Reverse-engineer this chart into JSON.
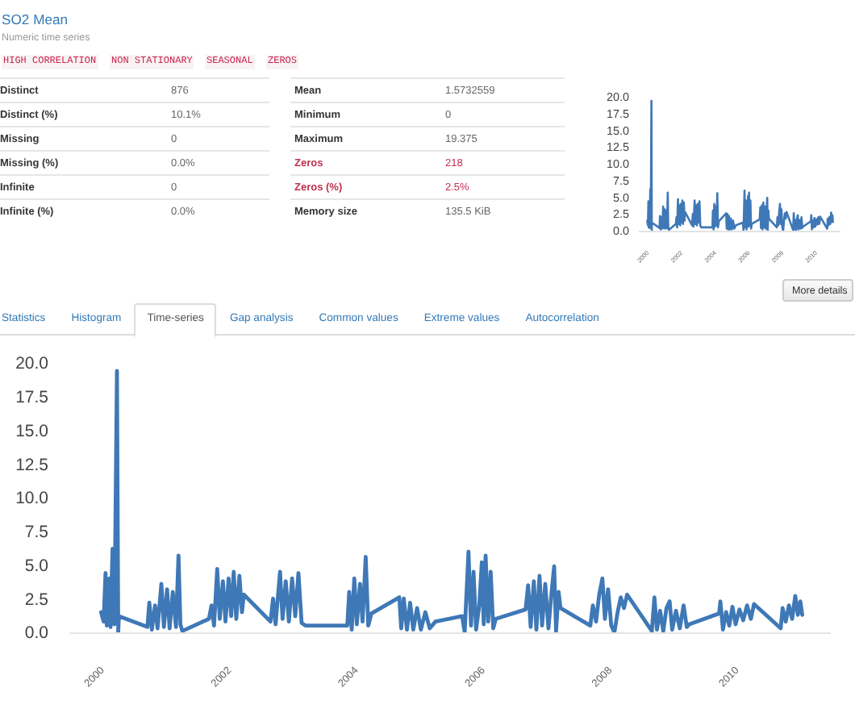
{
  "chart_data": [
    {
      "type": "other",
      "title": "SO2 Mean",
      "subtitle": "Numeric time series",
      "annotations": [
        "HIGH CORRELATION",
        "NON STATIONARY",
        "SEASONAL",
        "ZEROS",
        "Distinct",
        "876",
        "Distinct (%)",
        "10.1%",
        "Missing",
        "0",
        "Missing (%)",
        "0.0%",
        "Infinite",
        "0",
        "Infinite (%)",
        "0.0%",
        "Mean",
        "1.5732559",
        "Minimum",
        "0",
        "Maximum",
        "19.375",
        "Zeros",
        "218",
        "Zeros (%)",
        "2.5%",
        "Memory size",
        "135.5 KiB"
      ]
    },
    {
      "type": "line",
      "color": "#3f78b6",
      "xlim": [
        1999.5,
        2011.5
      ],
      "ylim": [
        0,
        20
      ],
      "xticks": [
        2000,
        2002,
        2004,
        2006,
        2008,
        2010
      ],
      "yticks": [
        {
          "value": 0,
          "label": "0.0"
        },
        2.5,
        {
          "value": 5,
          "label": "5.0"
        },
        7.5,
        {
          "value": 10,
          "label": "10.0"
        },
        12.5,
        {
          "value": 15,
          "label": "15.0"
        },
        17.5,
        {
          "value": 20,
          "label": "20.0"
        }
      ],
      "x": [
        2000.0,
        2000.04,
        2000.07,
        2000.09,
        2000.13,
        2000.15,
        2000.18,
        2000.21,
        2000.25,
        2000.27,
        2000.28,
        2000.73,
        2000.76,
        2000.8,
        2000.85,
        2000.89,
        2000.95,
        2000.99,
        2001.04,
        2001.08,
        2001.13,
        2001.18,
        2001.22,
        2001.25,
        2001.28,
        2001.7,
        2001.74,
        2001.78,
        2001.83,
        2001.87,
        2001.92,
        2001.96,
        2002.01,
        2002.05,
        2002.09,
        2002.13,
        2002.18,
        2002.22,
        2002.25,
        2002.67,
        2002.71,
        2002.75,
        2002.82,
        2002.86,
        2002.91,
        2002.96,
        2003.01,
        2003.06,
        2003.11,
        2003.16,
        2003.22,
        2003.88,
        2003.91,
        2003.95,
        2003.99,
        2004.03,
        2004.08,
        2004.12,
        2004.17,
        2004.21,
        2004.26,
        2004.7,
        2004.73,
        2004.77,
        2004.82,
        2004.87,
        2004.92,
        2004.98,
        2005.04,
        2005.11,
        2005.18,
        2005.27,
        2005.69,
        2005.73,
        2005.79,
        2005.83,
        2005.87,
        2005.91,
        2005.96,
        2006.0,
        2006.03,
        2006.06,
        2006.1,
        2006.14,
        2006.18,
        2006.22,
        2006.69,
        2006.73,
        2006.77,
        2006.82,
        2006.86,
        2006.91,
        2006.95,
        2007.0,
        2007.05,
        2007.1,
        2007.14,
        2007.17,
        2007.21,
        2007.24,
        2007.71,
        2007.75,
        2007.8,
        2007.85,
        2007.9,
        2007.94,
        2007.99,
        2008.04,
        2008.09,
        2008.14,
        2008.19,
        2008.24,
        2008.29,
        2008.68,
        2008.72,
        2008.76,
        2008.81,
        2008.86,
        2008.91,
        2008.96,
        2009.0,
        2009.06,
        2009.12,
        2009.18,
        2009.23,
        2009.27,
        2009.74,
        2009.76,
        2009.8,
        2009.85,
        2009.9,
        2009.95,
        2010.0,
        2010.06,
        2010.12,
        2010.18,
        2010.24,
        2010.29,
        2010.71,
        2010.74,
        2010.79,
        2010.84,
        2010.89,
        2010.94,
        2010.98,
        2011.02,
        2011.05
      ],
      "values": [
        1.5,
        0.8,
        4.4,
        0.5,
        4.0,
        0.4,
        6.2,
        0.6,
        19.4,
        0.0,
        1.2,
        0.4,
        2.2,
        0.2,
        2.0,
        0.3,
        3.6,
        0.4,
        3.2,
        0.3,
        3.0,
        0.4,
        5.7,
        0.6,
        0.1,
        1.0,
        2.0,
        0.5,
        4.7,
        1.0,
        3.8,
        0.8,
        4.0,
        1.2,
        4.5,
        1.0,
        4.2,
        1.5,
        2.8,
        0.8,
        2.5,
        0.6,
        4.5,
        1.0,
        3.8,
        0.8,
        4.0,
        1.2,
        4.4,
        0.7,
        0.5,
        0.5,
        3.0,
        0.2,
        4.0,
        0.6,
        3.6,
        0.8,
        5.6,
        0.5,
        1.4,
        2.6,
        0.3,
        2.5,
        0.2,
        2.2,
        0.2,
        1.8,
        0.2,
        1.5,
        0.3,
        0.8,
        1.2,
        0.0,
        6.0,
        0.5,
        4.5,
        0.2,
        2.0,
        5.2,
        0.6,
        5.7,
        0.8,
        4.5,
        0.3,
        1.0,
        1.7,
        3.5,
        0.4,
        3.8,
        0.2,
        4.2,
        0.5,
        3.6,
        0.3,
        3.0,
        4.9,
        0.1,
        3.0,
        1.8,
        0.5,
        2.0,
        0.8,
        2.8,
        4.0,
        1.0,
        3.2,
        0.5,
        0.0,
        1.5,
        2.6,
        1.8,
        2.8,
        0.1,
        2.6,
        0.2,
        1.6,
        0.1,
        1.8,
        2.3,
        0.2,
        1.6,
        0.3,
        2.0,
        0.4,
        0.6,
        1.4,
        2.3,
        0.2,
        1.5,
        0.5,
        1.9,
        0.6,
        1.7,
        0.9,
        2.0,
        1.0,
        2.1,
        0.3,
        1.8,
        0.8,
        2.0,
        1.0,
        2.7,
        1.3,
        2.3,
        1.3
      ]
    },
    {
      "type": "other",
      "annotations": [
        "More details",
        "Statistics",
        "Histogram",
        "Time-series",
        "Gap analysis",
        "Common values",
        "Extreme values",
        "Autocorrelation"
      ]
    },
    {
      "type": "line",
      "color": "#3f78b6",
      "xlim": [
        1999.5,
        2011.5
      ],
      "ylim": [
        0,
        20
      ],
      "xticks": [
        2000,
        2002,
        2004,
        2006,
        2008,
        2010
      ],
      "yticks": [
        {
          "value": 0,
          "label": "0.0"
        },
        2.5,
        {
          "value": 5,
          "label": "5.0"
        },
        7.5,
        {
          "value": 10,
          "label": "10.0"
        },
        12.5,
        {
          "value": 15,
          "label": "15.0"
        },
        17.5,
        {
          "value": 20,
          "label": "20.0"
        }
      ],
      "x": [
        2000.0,
        2000.04,
        2000.07,
        2000.09,
        2000.13,
        2000.15,
        2000.18,
        2000.21,
        2000.25,
        2000.27,
        2000.28,
        2000.73,
        2000.76,
        2000.8,
        2000.85,
        2000.89,
        2000.95,
        2000.99,
        2001.04,
        2001.08,
        2001.13,
        2001.18,
        2001.22,
        2001.25,
        2001.28,
        2001.7,
        2001.74,
        2001.78,
        2001.83,
        2001.87,
        2001.92,
        2001.96,
        2002.01,
        2002.05,
        2002.09,
        2002.13,
        2002.18,
        2002.22,
        2002.25,
        2002.67,
        2002.71,
        2002.75,
        2002.82,
        2002.86,
        2002.91,
        2002.96,
        2003.01,
        2003.06,
        2003.11,
        2003.16,
        2003.22,
        2003.88,
        2003.91,
        2003.95,
        2003.99,
        2004.03,
        2004.08,
        2004.12,
        2004.17,
        2004.21,
        2004.26,
        2004.7,
        2004.73,
        2004.77,
        2004.82,
        2004.87,
        2004.92,
        2004.98,
        2005.04,
        2005.11,
        2005.18,
        2005.27,
        2005.69,
        2005.73,
        2005.79,
        2005.83,
        2005.87,
        2005.91,
        2005.96,
        2006.0,
        2006.03,
        2006.06,
        2006.1,
        2006.14,
        2006.18,
        2006.22,
        2006.69,
        2006.73,
        2006.77,
        2006.82,
        2006.86,
        2006.91,
        2006.95,
        2007.0,
        2007.05,
        2007.1,
        2007.14,
        2007.17,
        2007.21,
        2007.24,
        2007.71,
        2007.75,
        2007.8,
        2007.85,
        2007.9,
        2007.94,
        2007.99,
        2008.04,
        2008.09,
        2008.14,
        2008.19,
        2008.24,
        2008.29,
        2008.68,
        2008.72,
        2008.76,
        2008.81,
        2008.86,
        2008.91,
        2008.96,
        2009.0,
        2009.06,
        2009.12,
        2009.18,
        2009.23,
        2009.27,
        2009.74,
        2009.76,
        2009.8,
        2009.85,
        2009.9,
        2009.95,
        2010.0,
        2010.06,
        2010.12,
        2010.18,
        2010.24,
        2010.29,
        2010.71,
        2010.74,
        2010.79,
        2010.84,
        2010.89,
        2010.94,
        2010.98,
        2011.02,
        2011.05
      ],
      "values": [
        1.5,
        0.8,
        4.4,
        0.5,
        4.0,
        0.4,
        6.2,
        0.6,
        19.4,
        0.0,
        1.2,
        0.4,
        2.2,
        0.2,
        2.0,
        0.3,
        3.6,
        0.4,
        3.2,
        0.3,
        3.0,
        0.4,
        5.7,
        0.6,
        0.1,
        1.0,
        2.0,
        0.5,
        4.7,
        1.0,
        3.8,
        0.8,
        4.0,
        1.2,
        4.5,
        1.0,
        4.2,
        1.5,
        2.8,
        0.8,
        2.5,
        0.6,
        4.5,
        1.0,
        3.8,
        0.8,
        4.0,
        1.2,
        4.4,
        0.7,
        0.5,
        0.5,
        3.0,
        0.2,
        4.0,
        0.6,
        3.6,
        0.8,
        5.6,
        0.5,
        1.4,
        2.6,
        0.3,
        2.5,
        0.2,
        2.2,
        0.2,
        1.8,
        0.2,
        1.5,
        0.3,
        0.8,
        1.2,
        0.0,
        6.0,
        0.5,
        4.5,
        0.2,
        2.0,
        5.2,
        0.6,
        5.7,
        0.8,
        4.5,
        0.3,
        1.0,
        1.7,
        3.5,
        0.4,
        3.8,
        0.2,
        4.2,
        0.5,
        3.6,
        0.3,
        3.0,
        4.9,
        0.1,
        3.0,
        1.8,
        0.5,
        2.0,
        0.8,
        2.8,
        4.0,
        1.0,
        3.2,
        0.5,
        0.0,
        1.5,
        2.6,
        1.8,
        2.8,
        0.1,
        2.6,
        0.2,
        1.6,
        0.1,
        1.8,
        2.3,
        0.2,
        1.6,
        0.3,
        2.0,
        0.4,
        0.6,
        1.4,
        2.3,
        0.2,
        1.5,
        0.5,
        1.9,
        0.6,
        1.7,
        0.9,
        2.0,
        1.0,
        2.1,
        0.3,
        1.8,
        0.8,
        2.0,
        1.0,
        2.7,
        1.3,
        2.3,
        1.3
      ]
    }
  ]
}
